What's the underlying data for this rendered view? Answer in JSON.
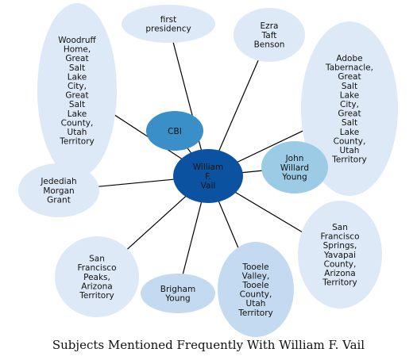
{
  "caption": "Subjects Mentioned Frequently With William F. Vail",
  "colors": {
    "center": "#0b53a0",
    "mid": "#3a8fc8",
    "light_mid": "#9ccbe5",
    "light": "#c4daf0",
    "pale": "#dde9f6",
    "edge": "#000000"
  },
  "center": {
    "id": "william",
    "lines": [
      "William",
      "F.",
      "Vail"
    ],
    "tone": "center"
  },
  "nodes": [
    {
      "id": "first-presidency",
      "lines": [
        "first",
        "presidency"
      ],
      "tone": "pale"
    },
    {
      "id": "ezra-taft-benson",
      "lines": [
        "Ezra",
        "Taft",
        "Benson"
      ],
      "tone": "pale"
    },
    {
      "id": "adobe-tabernacle",
      "lines": [
        "Adobe",
        "Tabernacle,",
        "Great",
        "Salt",
        "Lake",
        "City,",
        "Great",
        "Salt",
        "Lake",
        "County,",
        "Utah",
        "Territory"
      ],
      "tone": "pale"
    },
    {
      "id": "woodruff-home",
      "lines": [
        "Woodruff",
        "Home,",
        "Great",
        "Salt",
        "Lake",
        "City,",
        "Great",
        "Salt",
        "Lake",
        "County,",
        "Utah",
        "Territory"
      ],
      "tone": "pale"
    },
    {
      "id": "cbi",
      "lines": [
        "CBI"
      ],
      "tone": "mid"
    },
    {
      "id": "john-willard-young",
      "lines": [
        "John",
        "Willard",
        "Young"
      ],
      "tone": "light_mid"
    },
    {
      "id": "jedediah-morgan-grant",
      "lines": [
        "Jedediah",
        "Morgan",
        "Grant"
      ],
      "tone": "pale"
    },
    {
      "id": "san-francisco-springs",
      "lines": [
        "San",
        "Francisco",
        "Springs,",
        "Yavapai",
        "County,",
        "Arizona",
        "Territory"
      ],
      "tone": "pale"
    },
    {
      "id": "san-francisco-peaks",
      "lines": [
        "San",
        "Francisco",
        "Peaks,",
        "Arizona",
        "Territory"
      ],
      "tone": "pale"
    },
    {
      "id": "brigham-young",
      "lines": [
        "Brigham",
        "Young"
      ],
      "tone": "light"
    },
    {
      "id": "tooele-valley",
      "lines": [
        "Tooele",
        "Valley,",
        "Tooele",
        "County,",
        "Utah",
        "Territory"
      ],
      "tone": "light"
    }
  ]
}
